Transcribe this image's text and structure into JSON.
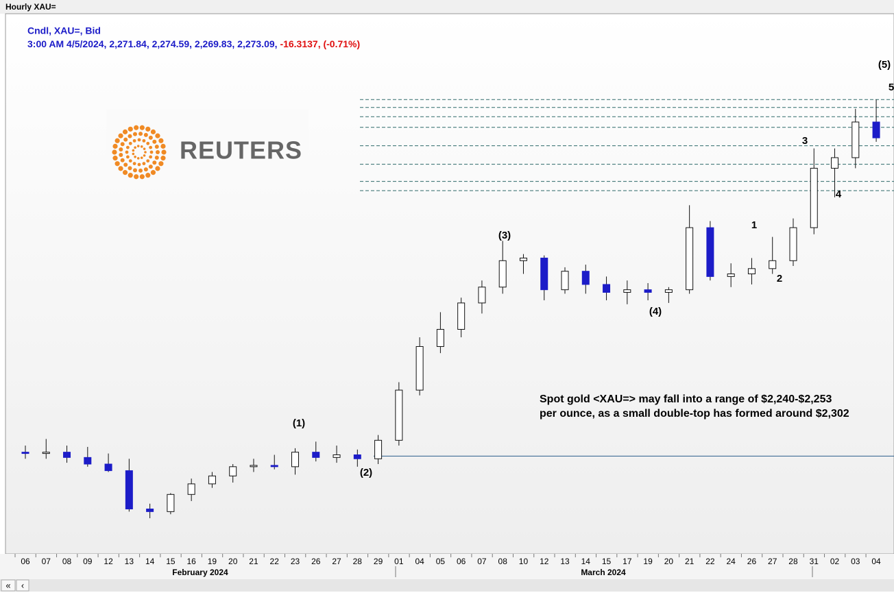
{
  "window": {
    "title": "Hourly XAU="
  },
  "chart_data": {
    "type": "candlestick",
    "legend": {
      "line1": "Cndl, XAU=, Bid",
      "quote": "3:00 AM 4/5/2024, 2,271.84, 2,274.59, 2,269.83, 2,273.09, ",
      "change": "-16.3137, (-0.71%)"
    },
    "logo": "REUTERS",
    "categories": [
      "06",
      "07",
      "08",
      "09",
      "12",
      "13",
      "14",
      "15",
      "16",
      "19",
      "20",
      "21",
      "22",
      "23",
      "26",
      "27",
      "28",
      "29",
      "01",
      "04",
      "05",
      "06",
      "07",
      "08",
      "10",
      "12",
      "13",
      "14",
      "15",
      "17",
      "19",
      "20",
      "21",
      "22",
      "24",
      "26",
      "27",
      "28",
      "31",
      "02",
      "03",
      "04"
    ],
    "open": [
      2035,
      2034,
      2035,
      2031,
      2026,
      2021,
      1992,
      1990,
      2003,
      2011,
      2017,
      2024,
      2025,
      2024,
      2035,
      2031,
      2033,
      2030,
      2044,
      2082,
      2115,
      2128,
      2148,
      2160,
      2180,
      2182,
      2158,
      2172,
      2162,
      2156,
      2158,
      2156,
      2158,
      2205,
      2168,
      2170,
      2174,
      2180,
      2205,
      2250,
      2258,
      2285
    ],
    "high": [
      2040,
      2045,
      2040,
      2039,
      2034,
      2030,
      1996,
      2004,
      2015,
      2020,
      2026,
      2030,
      2033,
      2038,
      2043,
      2040,
      2037,
      2048,
      2088,
      2122,
      2141,
      2152,
      2165,
      2195,
      2185,
      2184,
      2175,
      2177,
      2168,
      2165,
      2163,
      2160,
      2222,
      2210,
      2178,
      2182,
      2198,
      2212,
      2265,
      2265,
      2295,
      2302
    ],
    "low": [
      2030,
      2030,
      2027,
      2024,
      2020,
      1990,
      1985,
      1988,
      1998,
      2008,
      2012,
      2020,
      2022,
      2018,
      2028,
      2027,
      2024,
      2026,
      2040,
      2078,
      2110,
      2122,
      2140,
      2155,
      2170,
      2150,
      2155,
      2155,
      2150,
      2147,
      2150,
      2148,
      2155,
      2165,
      2160,
      2162,
      2170,
      2176,
      2200,
      2228,
      2250,
      2270
    ],
    "close": [
      2034,
      2035,
      2031,
      2026,
      2021,
      1992,
      1990,
      2003,
      2011,
      2017,
      2024,
      2025,
      2024,
      2035,
      2031,
      2033,
      2030,
      2044,
      2082,
      2115,
      2128,
      2148,
      2160,
      2180,
      2182,
      2158,
      2172,
      2162,
      2156,
      2158,
      2156,
      2158,
      2205,
      2168,
      2170,
      2174,
      2180,
      2205,
      2250,
      2258,
      2285,
      2273
    ],
    "up_color": "#ffffff",
    "down_color": "#1c1cc8",
    "ylim": [
      1958,
      2367
    ],
    "levels": [
      2302,
      2296,
      2289,
      2281,
      2267,
      2253,
      2240,
      2233
    ],
    "levels_color": "#2e6a6a",
    "support": 2032,
    "support_color": "#2a5d8a",
    "months": [
      "February 2024",
      "March 2024"
    ],
    "waves": [
      "(1)",
      "(2)",
      "(3)",
      "(4)",
      "(5)",
      "1",
      "2",
      "3",
      "4",
      "5"
    ],
    "annotation": [
      "Spot gold <XAU=> may fall into a range of $2,240-$2,253",
      "per ounce, as a small double-top has formed around $2,302"
    ]
  }
}
